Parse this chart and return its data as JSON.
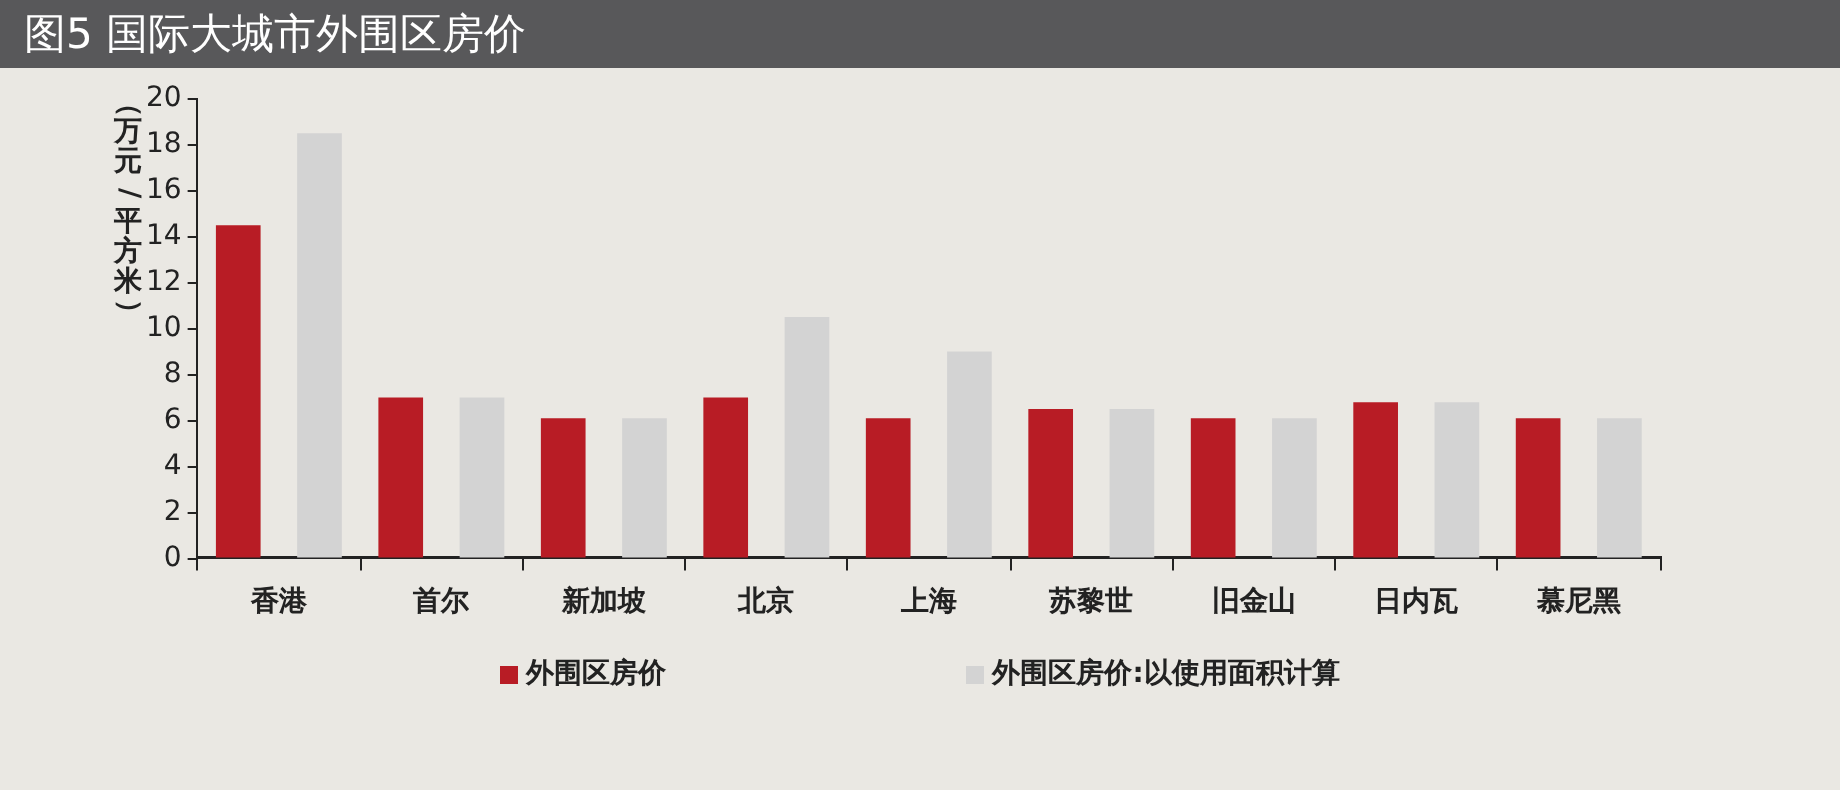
{
  "chart_data": {
    "type": "bar",
    "title": "图5 国际大城市外围区房价",
    "ylabel": "（万元/平方米）",
    "categories": [
      "香港",
      "首尔",
      "新加坡",
      "北京",
      "上海",
      "苏黎世",
      "旧金山",
      "日内瓦",
      "慕尼黑"
    ],
    "series": [
      {
        "name": "外围区房价",
        "color": "#b81c25",
        "values": [
          14.5,
          7,
          6.1,
          7,
          6.1,
          6.5,
          6.1,
          6.8,
          6.1
        ]
      },
      {
        "name": "外围区房价:以使用面积计算",
        "color": "#d3d3d3",
        "values": [
          18.5,
          7,
          6.1,
          10.5,
          9,
          6.5,
          6.1,
          6.8,
          6.1
        ]
      }
    ],
    "ylim": [
      0,
      20
    ],
    "yticks": [
      0,
      2,
      4,
      6,
      8,
      10,
      12,
      14,
      16,
      18,
      20
    ],
    "grid": false,
    "legend": "bottom"
  }
}
